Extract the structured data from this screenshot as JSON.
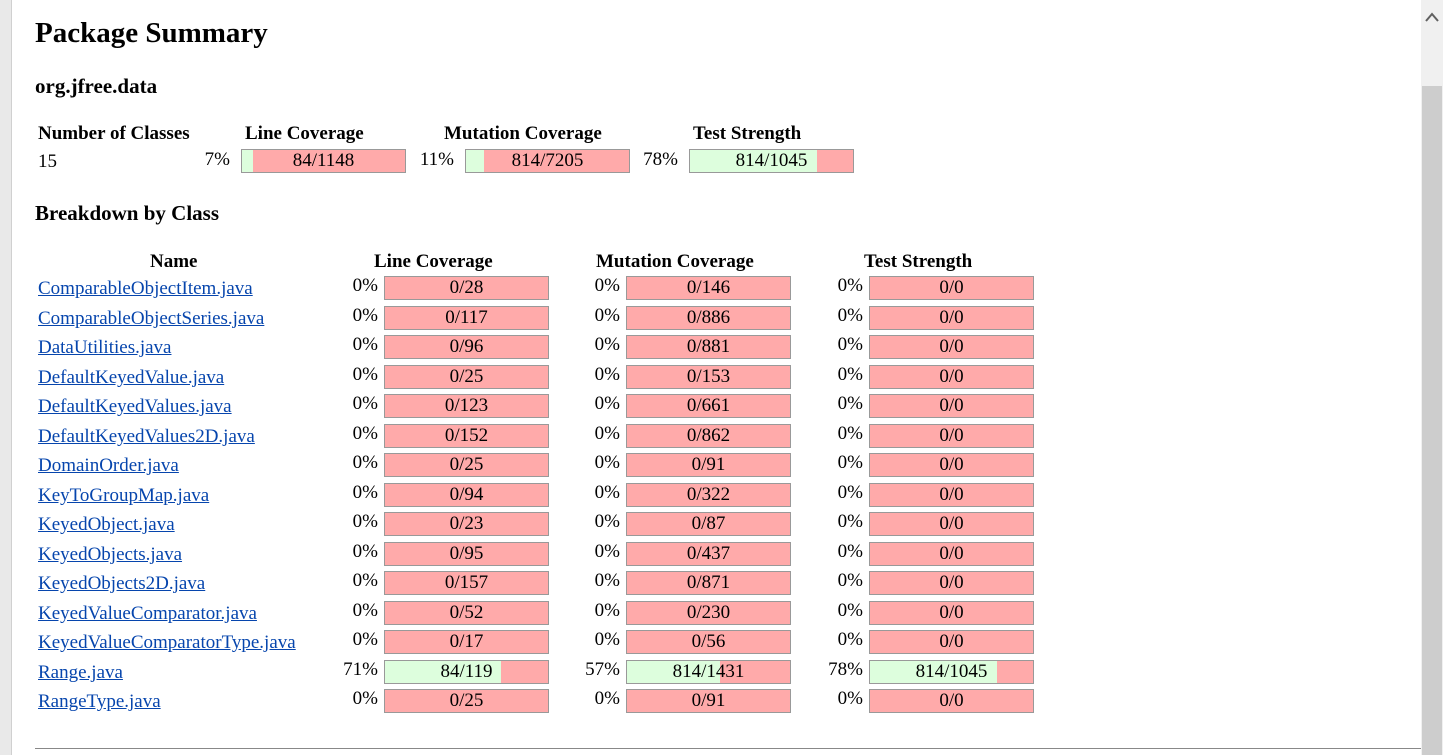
{
  "title": "Package Summary",
  "package_name": "org.jfree.data",
  "summary": {
    "headers": {
      "classes": "Number of Classes",
      "line": "Line Coverage",
      "mutation": "Mutation Coverage",
      "strength": "Test Strength"
    },
    "classes_count": "15",
    "line": {
      "pct": "7%",
      "label": "84/1148",
      "fraction": 0.07
    },
    "mutation": {
      "pct": "11%",
      "label": "814/7205",
      "fraction": 0.11
    },
    "strength": {
      "pct": "78%",
      "label": "814/1045",
      "fraction": 0.78
    }
  },
  "breakdown_title": "Breakdown by Class",
  "table": {
    "headers": {
      "name": "Name",
      "line": "Line Coverage",
      "mutation": "Mutation Coverage",
      "strength": "Test Strength"
    },
    "rows": [
      {
        "name": "ComparableObjectItem.java",
        "line": {
          "pct": "0%",
          "label": "0/28",
          "fraction": 0
        },
        "mutation": {
          "pct": "0%",
          "label": "0/146",
          "fraction": 0
        },
        "strength": {
          "pct": "0%",
          "label": "0/0",
          "fraction": 0
        }
      },
      {
        "name": "ComparableObjectSeries.java",
        "line": {
          "pct": "0%",
          "label": "0/117",
          "fraction": 0
        },
        "mutation": {
          "pct": "0%",
          "label": "0/886",
          "fraction": 0
        },
        "strength": {
          "pct": "0%",
          "label": "0/0",
          "fraction": 0
        }
      },
      {
        "name": "DataUtilities.java",
        "line": {
          "pct": "0%",
          "label": "0/96",
          "fraction": 0
        },
        "mutation": {
          "pct": "0%",
          "label": "0/881",
          "fraction": 0
        },
        "strength": {
          "pct": "0%",
          "label": "0/0",
          "fraction": 0
        }
      },
      {
        "name": "DefaultKeyedValue.java",
        "line": {
          "pct": "0%",
          "label": "0/25",
          "fraction": 0
        },
        "mutation": {
          "pct": "0%",
          "label": "0/153",
          "fraction": 0
        },
        "strength": {
          "pct": "0%",
          "label": "0/0",
          "fraction": 0
        }
      },
      {
        "name": "DefaultKeyedValues.java",
        "line": {
          "pct": "0%",
          "label": "0/123",
          "fraction": 0
        },
        "mutation": {
          "pct": "0%",
          "label": "0/661",
          "fraction": 0
        },
        "strength": {
          "pct": "0%",
          "label": "0/0",
          "fraction": 0
        }
      },
      {
        "name": "DefaultKeyedValues2D.java",
        "line": {
          "pct": "0%",
          "label": "0/152",
          "fraction": 0
        },
        "mutation": {
          "pct": "0%",
          "label": "0/862",
          "fraction": 0
        },
        "strength": {
          "pct": "0%",
          "label": "0/0",
          "fraction": 0
        }
      },
      {
        "name": "DomainOrder.java",
        "line": {
          "pct": "0%",
          "label": "0/25",
          "fraction": 0
        },
        "mutation": {
          "pct": "0%",
          "label": "0/91",
          "fraction": 0
        },
        "strength": {
          "pct": "0%",
          "label": "0/0",
          "fraction": 0
        }
      },
      {
        "name": "KeyToGroupMap.java",
        "line": {
          "pct": "0%",
          "label": "0/94",
          "fraction": 0
        },
        "mutation": {
          "pct": "0%",
          "label": "0/322",
          "fraction": 0
        },
        "strength": {
          "pct": "0%",
          "label": "0/0",
          "fraction": 0
        }
      },
      {
        "name": "KeyedObject.java",
        "line": {
          "pct": "0%",
          "label": "0/23",
          "fraction": 0
        },
        "mutation": {
          "pct": "0%",
          "label": "0/87",
          "fraction": 0
        },
        "strength": {
          "pct": "0%",
          "label": "0/0",
          "fraction": 0
        }
      },
      {
        "name": "KeyedObjects.java",
        "line": {
          "pct": "0%",
          "label": "0/95",
          "fraction": 0
        },
        "mutation": {
          "pct": "0%",
          "label": "0/437",
          "fraction": 0
        },
        "strength": {
          "pct": "0%",
          "label": "0/0",
          "fraction": 0
        }
      },
      {
        "name": "KeyedObjects2D.java",
        "line": {
          "pct": "0%",
          "label": "0/157",
          "fraction": 0
        },
        "mutation": {
          "pct": "0%",
          "label": "0/871",
          "fraction": 0
        },
        "strength": {
          "pct": "0%",
          "label": "0/0",
          "fraction": 0
        }
      },
      {
        "name": "KeyedValueComparator.java",
        "line": {
          "pct": "0%",
          "label": "0/52",
          "fraction": 0
        },
        "mutation": {
          "pct": "0%",
          "label": "0/230",
          "fraction": 0
        },
        "strength": {
          "pct": "0%",
          "label": "0/0",
          "fraction": 0
        }
      },
      {
        "name": "KeyedValueComparatorType.java",
        "line": {
          "pct": "0%",
          "label": "0/17",
          "fraction": 0
        },
        "mutation": {
          "pct": "0%",
          "label": "0/56",
          "fraction": 0
        },
        "strength": {
          "pct": "0%",
          "label": "0/0",
          "fraction": 0
        }
      },
      {
        "name": "Range.java",
        "line": {
          "pct": "71%",
          "label": "84/119",
          "fraction": 0.71
        },
        "mutation": {
          "pct": "57%",
          "label": "814/1431",
          "fraction": 0.57
        },
        "strength": {
          "pct": "78%",
          "label": "814/1045",
          "fraction": 0.78
        }
      },
      {
        "name": "RangeType.java",
        "line": {
          "pct": "0%",
          "label": "0/25",
          "fraction": 0
        },
        "mutation": {
          "pct": "0%",
          "label": "0/91",
          "fraction": 0
        },
        "strength": {
          "pct": "0%",
          "label": "0/0",
          "fraction": 0
        }
      }
    ]
  },
  "colors": {
    "covered": "#ddfedd",
    "uncovered": "#ffaaaa",
    "link": "#0645ad"
  }
}
